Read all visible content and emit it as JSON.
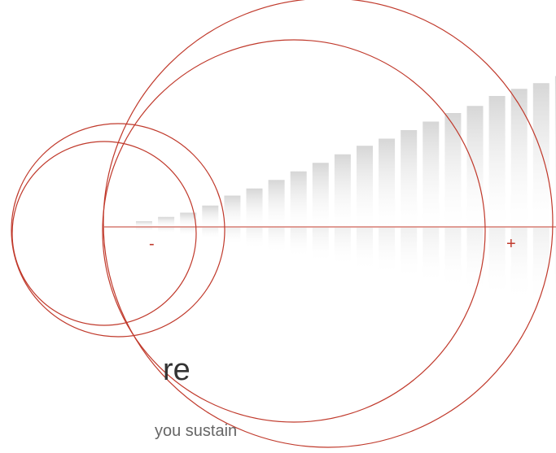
{
  "text": {
    "heading_fragment": "re",
    "subtitle_fragment": "you sustain"
  },
  "axis": {
    "minus_label": "-",
    "plus_label": "+"
  },
  "colors": {
    "accent": "#c0392b",
    "heading": "#333333",
    "subtitle": "#666666",
    "bar_top": "#cfcfcf",
    "bar_bottom": "#ffffff"
  },
  "chart_data": {
    "type": "bar",
    "values": [
      4,
      7,
      10,
      15,
      22,
      27,
      33,
      39,
      45,
      51,
      57,
      62,
      68,
      74,
      80,
      85,
      92,
      97,
      101,
      106
    ]
  }
}
